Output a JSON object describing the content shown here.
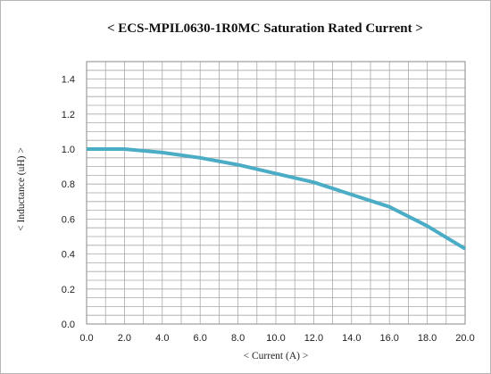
{
  "chart_data": {
    "type": "line",
    "title": "< ECS-MPIL0630-1R0MC  Saturation  Rated Current  >",
    "xlabel": "< Current (A) >",
    "ylabel": "< Inductance (uH) >",
    "xlim": [
      0,
      20
    ],
    "ylim": [
      0,
      1.5
    ],
    "x_ticks": [
      "0.0",
      "2.0",
      "4.0",
      "6.0",
      "8.0",
      "10.0",
      "12.0",
      "14.0",
      "16.0",
      "18.0",
      "20.0"
    ],
    "y_ticks": [
      "0.0",
      "0.2",
      "0.4",
      "0.6",
      "0.8",
      "1.0",
      "1.2",
      "1.4"
    ],
    "grid": true,
    "legend": "none",
    "line_color": "#4bacc6",
    "series": [
      {
        "x": [
          0,
          2,
          4,
          6,
          8,
          10,
          12,
          14,
          16,
          18,
          20
        ],
        "y": [
          1.0,
          1.0,
          0.98,
          0.95,
          0.91,
          0.86,
          0.81,
          0.74,
          0.67,
          0.56,
          0.43
        ]
      }
    ]
  }
}
